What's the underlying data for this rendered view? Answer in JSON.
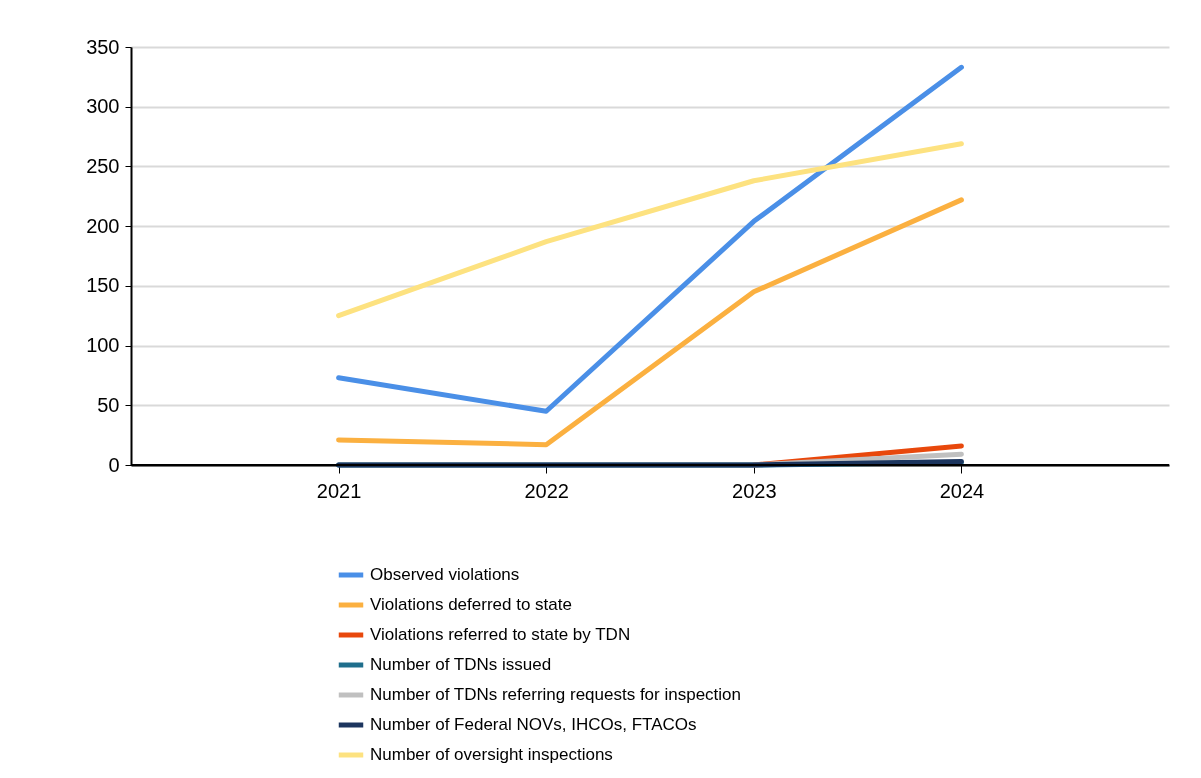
{
  "chart_data": {
    "type": "line",
    "categories": [
      "2021",
      "2022",
      "2023",
      "2024"
    ],
    "series": [
      {
        "name": "Observed violations",
        "color": "#4a8fe7",
        "values": [
          73,
          45,
          204,
          333
        ]
      },
      {
        "name": "Violations deferred to state",
        "color": "#fbb040",
        "values": [
          21,
          17,
          145,
          222
        ]
      },
      {
        "name": "Violations referred to state by TDN",
        "color": "#e8480c",
        "values": [
          null,
          null,
          0,
          16
        ]
      },
      {
        "name": "Number of TDNs issued",
        "color": "#1f6e8c",
        "values": [
          0,
          0,
          0,
          2
        ]
      },
      {
        "name": "Number of TDNs referring requests for inspection",
        "color": "#c0c0c0",
        "values": [
          null,
          null,
          0,
          9
        ]
      },
      {
        "name": "Number of Federal NOVs, IHCOs, FTACOs",
        "color": "#1c355e",
        "values": [
          0,
          0,
          0,
          3
        ]
      },
      {
        "name": "Number of oversight inspections",
        "color": "#fde280",
        "values": [
          125,
          187,
          238,
          269
        ]
      }
    ],
    "ylim": [
      0,
      350
    ],
    "yticks": [
      0,
      50,
      100,
      150,
      200,
      250,
      300,
      350
    ],
    "grid": "y",
    "legend": "bottom",
    "marker": "none",
    "line_style": "solid"
  }
}
